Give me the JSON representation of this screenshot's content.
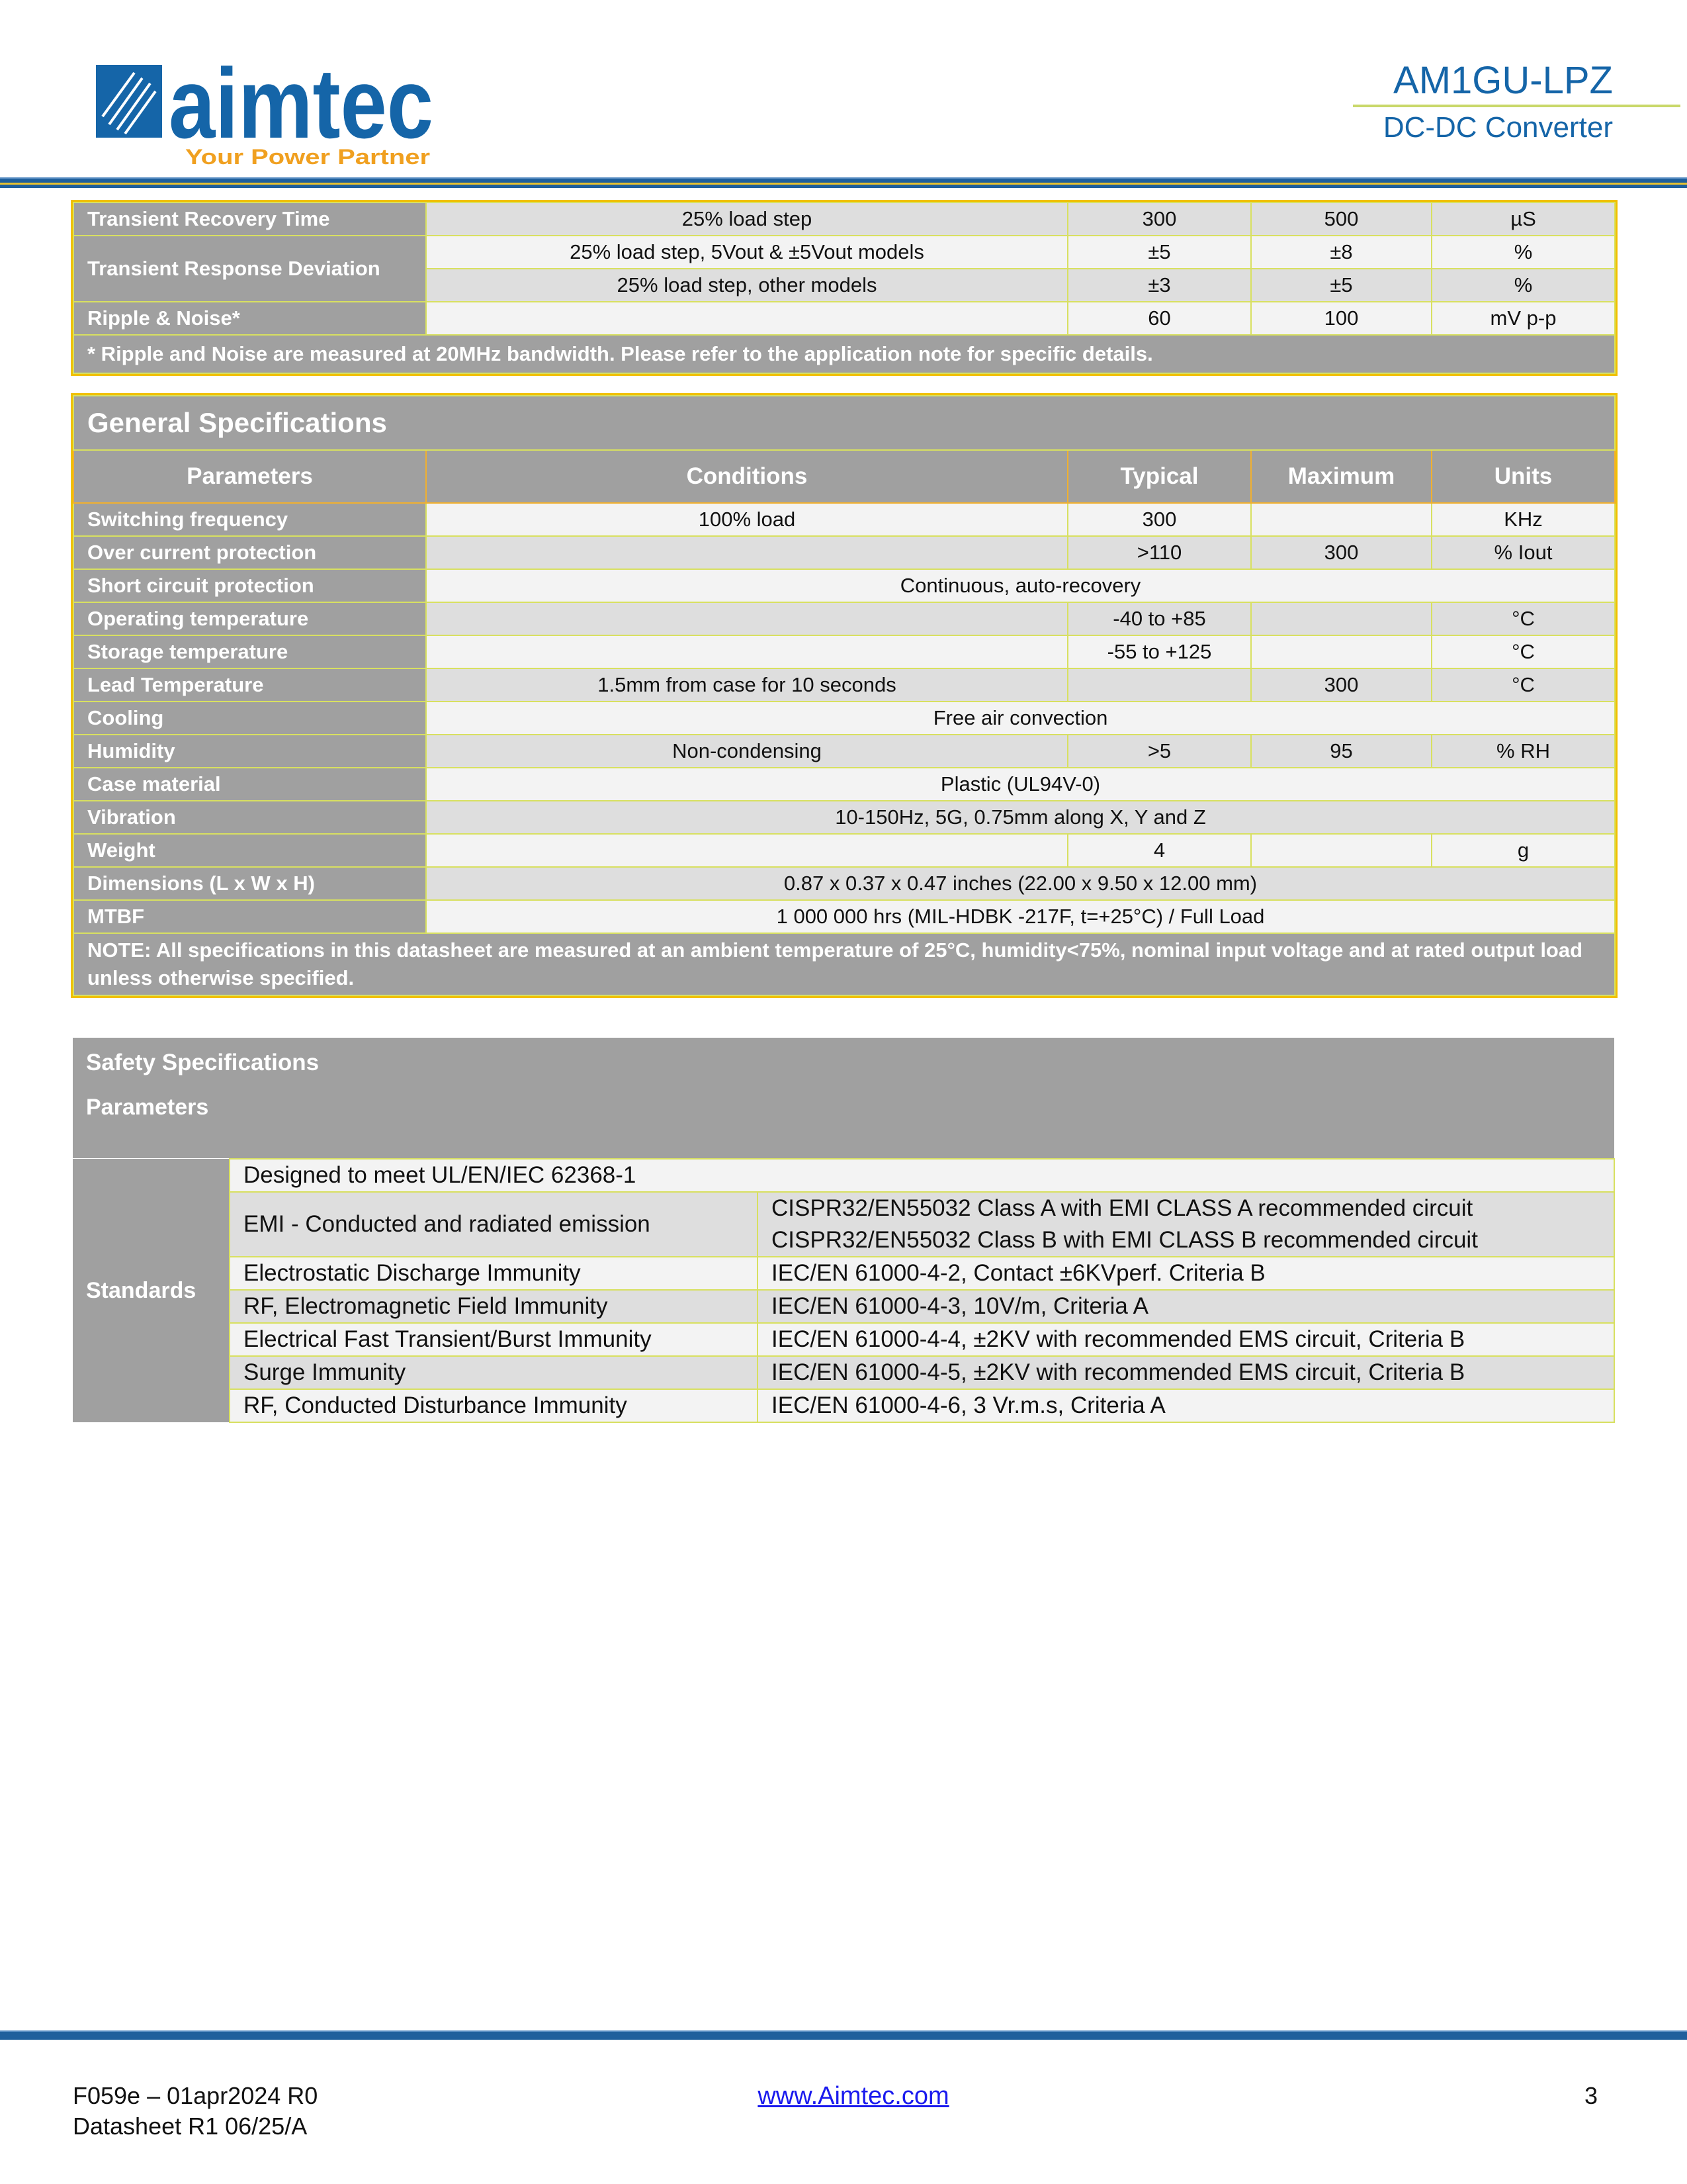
{
  "header": {
    "logo_text": "aimtec",
    "logo_tagline": "Your Power Partner",
    "title": "AM1GU-LPZ",
    "subtitle": "DC-DC Converter",
    "colors": {
      "brand_blue": "#1565a8",
      "tagline_orange": "#f0a020",
      "header_gray": "#a0a0a0"
    }
  },
  "output_table": {
    "rows": [
      {
        "param": "Transient Recovery Time",
        "cond": "25% load step",
        "typ": "300",
        "max": "500",
        "unit": "µS"
      },
      {
        "param": "Transient Response Deviation",
        "cond": "25% load step, 5Vout & ±5Vout models",
        "typ": "±5",
        "max": "±8",
        "unit": "%"
      },
      {
        "param": "",
        "cond": "25% load step, other models",
        "typ": "±3",
        "max": "±5",
        "unit": "%"
      },
      {
        "param": "Ripple & Noise*",
        "cond": "",
        "typ": "60",
        "max": "100",
        "unit": "mV p-p"
      }
    ],
    "note": "* Ripple and Noise are measured at 20MHz bandwidth. Please refer to the application note for specific details."
  },
  "general": {
    "title": "General Specifications",
    "columns": [
      "Parameters",
      "Conditions",
      "Typical",
      "Maximum",
      "Units"
    ],
    "rows": [
      {
        "param": "Switching frequency",
        "cond": "100% load",
        "typ": "300",
        "max": "",
        "unit": "KHz"
      },
      {
        "param": "Over current protection",
        "cond": "",
        "typ": ">110",
        "max": "300",
        "unit": "% Iout"
      },
      {
        "param": "Short circuit protection",
        "span": "Continuous, auto-recovery"
      },
      {
        "param": "Operating temperature",
        "cond": "",
        "typ": "-40 to +85",
        "max": "",
        "unit": "°C"
      },
      {
        "param": "Storage temperature",
        "cond": "",
        "typ": "-55 to +125",
        "max": "",
        "unit": "°C"
      },
      {
        "param": "Lead Temperature",
        "cond": "1.5mm from case for 10 seconds",
        "typ": "",
        "max": "300",
        "unit": "°C"
      },
      {
        "param": "Cooling",
        "span": "Free air convection"
      },
      {
        "param": "Humidity",
        "cond": "Non-condensing",
        "typ": ">5",
        "max": "95",
        "unit": "% RH"
      },
      {
        "param": "Case material",
        "span": "Plastic (UL94V-0)"
      },
      {
        "param": "Vibration",
        "span": "10-150Hz, 5G, 0.75mm along X, Y and Z"
      },
      {
        "param": "Weight",
        "cond": "",
        "typ": "4",
        "max": "",
        "unit": "g"
      },
      {
        "param": "Dimensions (L x W x H)",
        "span": "0.87 x 0.37 x 0.47 inches (22.00 x 9.50 x 12.00 mm)"
      },
      {
        "param": "MTBF",
        "span": "1 000 000 hrs (MIL-HDBK -217F, t=+25°C) / Full Load"
      }
    ],
    "note": "NOTE: All specifications in this datasheet are measured at an ambient temperature of 25°C, humidity<75%, nominal input voltage and at rated output load unless otherwise specified."
  },
  "safety": {
    "title": "Safety Specifications",
    "param_header": "Parameters",
    "group_label": "Standards",
    "rows": [
      {
        "name": "Designed to meet UL/EN/IEC 62368-1",
        "value": ""
      },
      {
        "name": "EMI - Conducted and radiated emission",
        "value": "CISPR32/EN55032 Class A with EMI CLASS A recommended circuit",
        "value2": "CISPR32/EN55032 Class B with EMI CLASS B recommended circuit"
      },
      {
        "name": "Electrostatic Discharge Immunity",
        "value": "IEC/EN 61000-4-2, Contact ±6KVperf. Criteria B"
      },
      {
        "name": "RF, Electromagnetic Field Immunity",
        "value": "IEC/EN 61000-4-3, 10V/m, Criteria A"
      },
      {
        "name": "Electrical Fast Transient/Burst Immunity",
        "value": "IEC/EN 61000-4-4, ±2KV with recommended EMS circuit, Criteria B"
      },
      {
        "name": "Surge Immunity",
        "value": "IEC/EN 61000-4-5, ±2KV with recommended EMS circuit, Criteria B"
      },
      {
        "name": "RF, Conducted Disturbance Immunity",
        "value": "IEC/EN 61000-4-6, 3 Vr.m.s, Criteria A"
      }
    ]
  },
  "footer": {
    "form_code": "F059e – 01apr2024 R0",
    "datasheet_rev": "Datasheet R1 06/25/A",
    "url": "www.Aimtec.com",
    "page_number": "3"
  }
}
